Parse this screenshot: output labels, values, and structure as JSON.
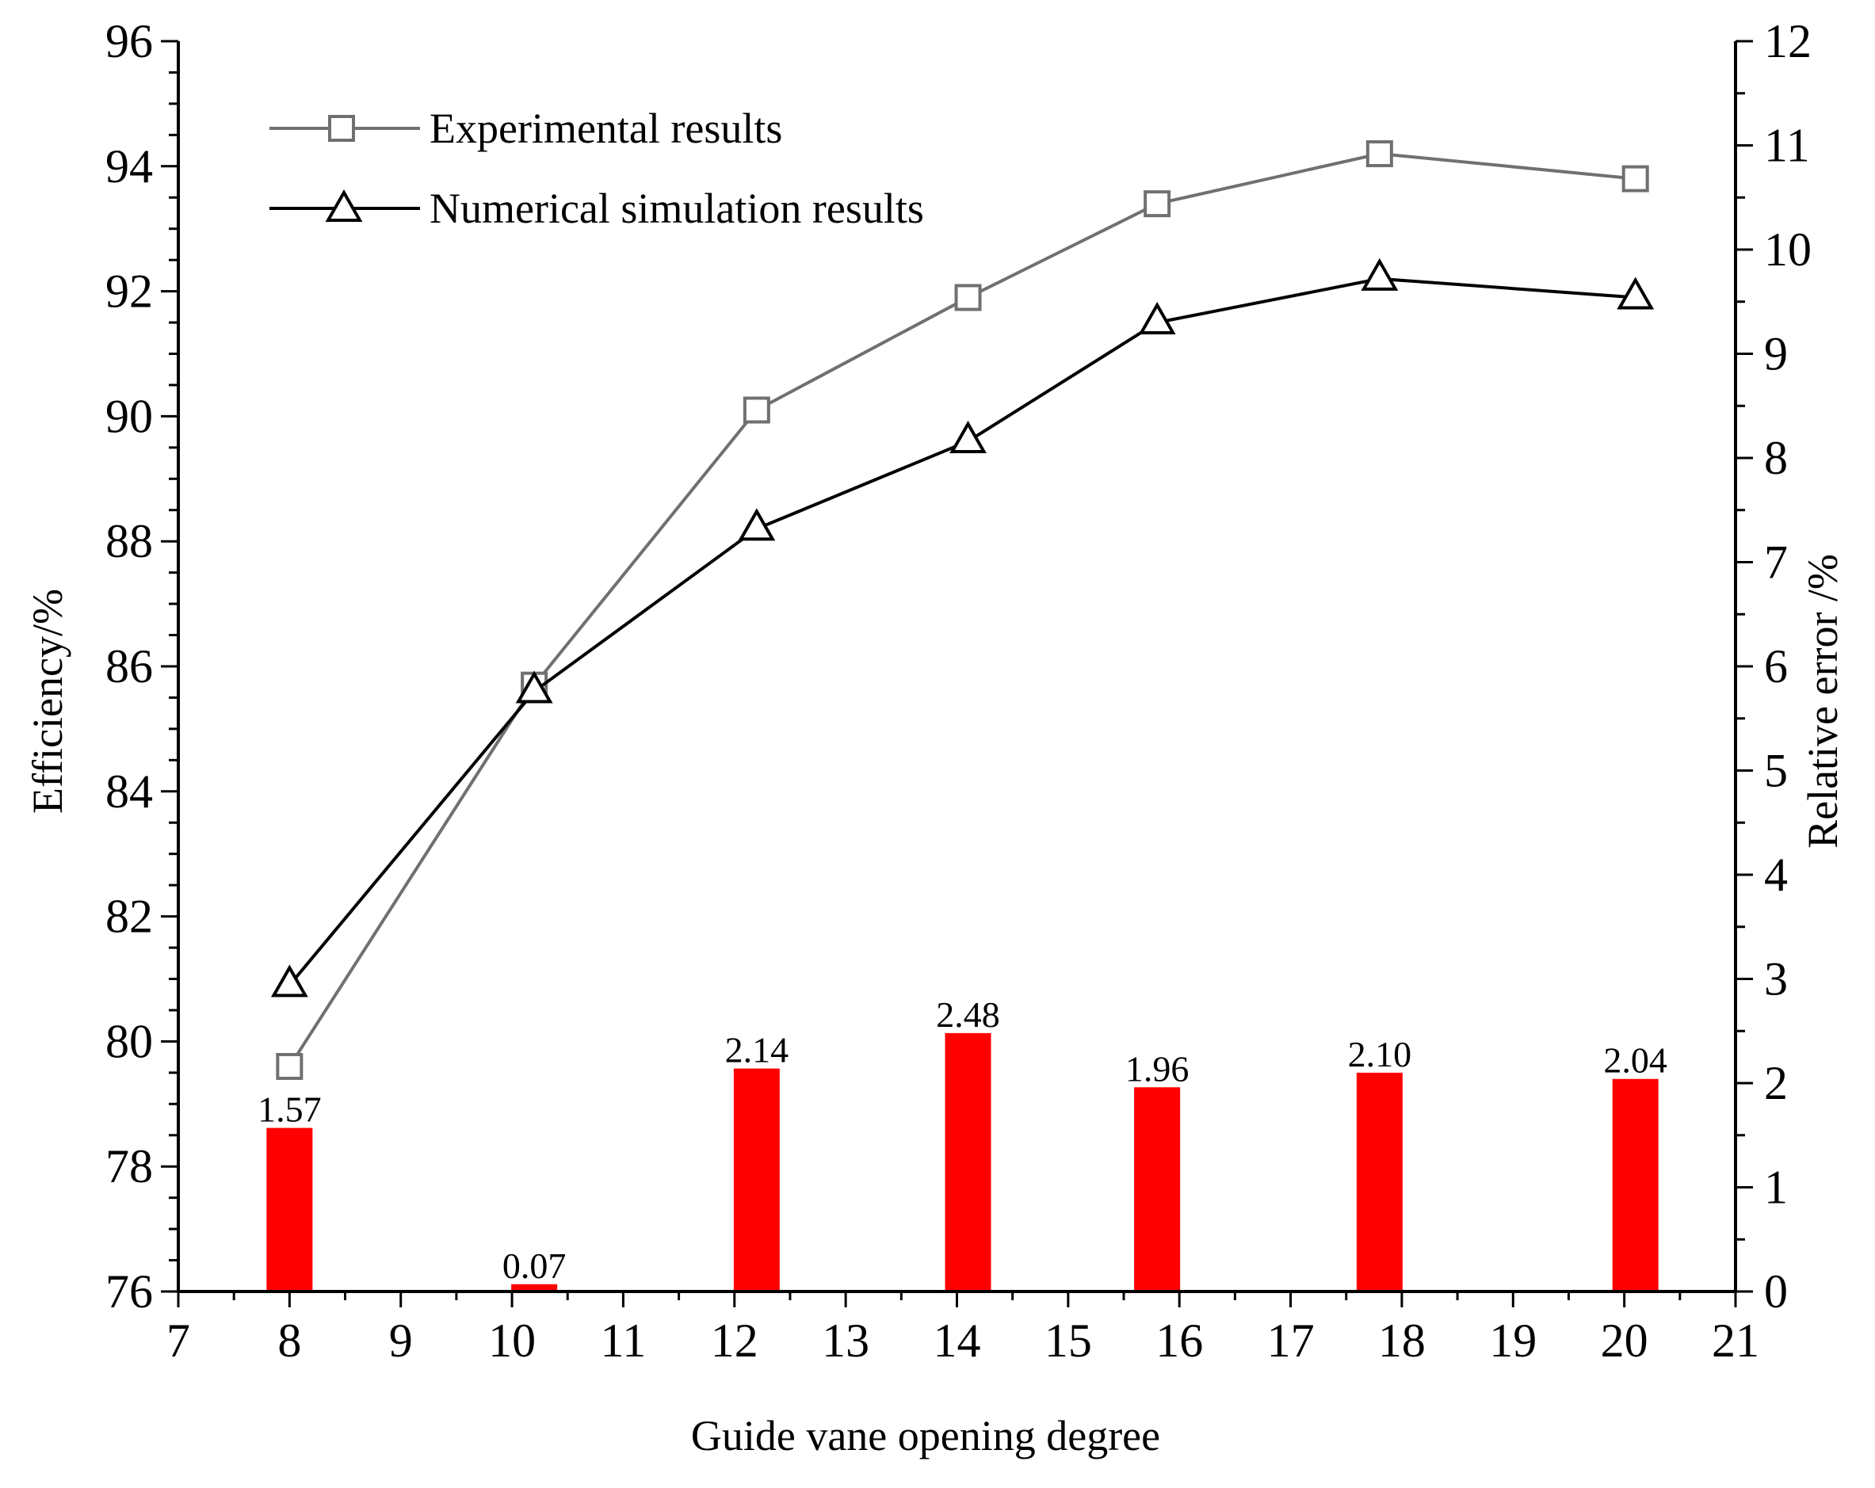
{
  "chart_data": {
    "type": "line+bar",
    "xlabel": "Guide vane opening degree",
    "ylabel": "Efficiency/%",
    "y2label": "Relative error /%",
    "xlim": [
      7,
      21
    ],
    "ylim": [
      76,
      96
    ],
    "y2lim": [
      0,
      12
    ],
    "xticks": [
      7,
      8,
      9,
      10,
      11,
      12,
      13,
      14,
      15,
      16,
      17,
      18,
      19,
      20,
      21
    ],
    "yticks": [
      76,
      78,
      80,
      82,
      84,
      86,
      88,
      90,
      92,
      94,
      96
    ],
    "y2ticks": [
      0,
      1,
      2,
      3,
      4,
      5,
      6,
      7,
      8,
      9,
      10,
      11,
      12
    ],
    "legend_position": "top-left",
    "series": [
      {
        "name": "Experimental results",
        "marker": "square",
        "color": "#707070",
        "axis": "left",
        "x": [
          8,
          10.2,
          12.2,
          14.1,
          15.8,
          17.8,
          20.1
        ],
        "values": [
          79.6,
          85.7,
          90.1,
          91.9,
          93.4,
          94.2,
          93.8
        ]
      },
      {
        "name": "Numerical simulation results",
        "marker": "triangle",
        "color": "#000000",
        "axis": "left",
        "x": [
          8,
          10.2,
          12.2,
          14.1,
          15.8,
          17.8,
          20.1
        ],
        "values": [
          80.9,
          85.6,
          88.2,
          89.6,
          91.5,
          92.2,
          91.9
        ]
      }
    ],
    "bars": {
      "name": "Relative error",
      "axis": "right",
      "color": "#ff0000",
      "x": [
        8,
        10.2,
        12.2,
        14.1,
        15.8,
        17.8,
        20.1
      ],
      "values": [
        1.57,
        0.07,
        2.14,
        2.48,
        1.96,
        2.1,
        2.04
      ],
      "labels": [
        "1.57",
        "0.07",
        "2.14",
        "2.48",
        "1.96",
        "2.10",
        "2.04"
      ]
    }
  }
}
